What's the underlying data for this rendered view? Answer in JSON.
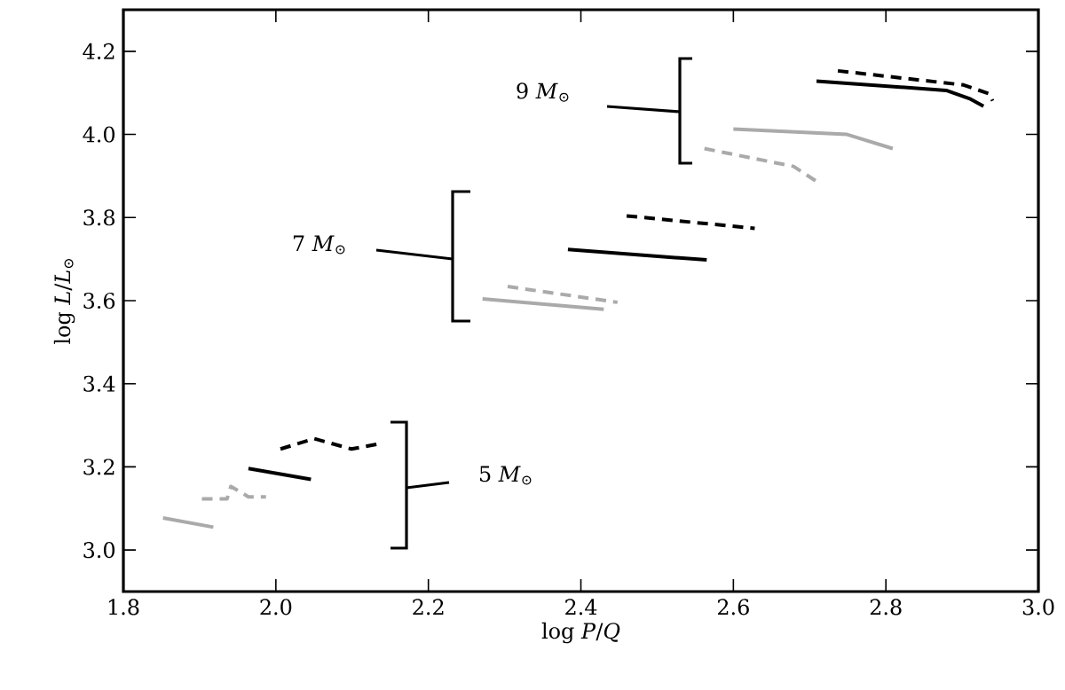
{
  "chart_data": {
    "type": "line",
    "xlabel": "log *P*/*Q*",
    "ylabel": "log *L*/*L*$_{⊙}$",
    "xlim": [
      1.8,
      3.0
    ],
    "ylim": [
      2.9,
      4.3
    ],
    "xticks": [
      1.8,
      {
        "value": 2.0,
        "label": "2.0"
      },
      2.2,
      2.4,
      2.6,
      2.8,
      {
        "value": 3.0,
        "label": "3.0"
      }
    ],
    "yticks": [
      {
        "value": 3.0,
        "label": "3.0"
      },
      3.2,
      3.4,
      3.6,
      3.8,
      {
        "value": 4.0,
        "label": "4.0"
      },
      4.2
    ],
    "annotations": [
      "9 *M*$_{⊙}$",
      "7 *M*$_{⊙}$",
      "5 *M*$_{⊙}$"
    ],
    "series": [
      {
        "color": "#000000",
        "line_style": "solid",
        "x": [
          2.709,
          2.879,
          2.911,
          2.928
        ],
        "values": [
          4.128,
          4.106,
          4.085,
          4.068
        ]
      },
      {
        "color": "#000000",
        "line_style": "dashed",
        "x": [
          2.737,
          2.902,
          2.935,
          2.94
        ],
        "values": [
          4.153,
          4.119,
          4.098,
          4.081
        ]
      },
      {
        "color": "#aaaaaa",
        "line_style": "solid",
        "x": [
          2.6,
          2.749,
          2.809
        ],
        "values": [
          4.013,
          4.0,
          3.966
        ]
      },
      {
        "color": "#aaaaaa",
        "line_style": "dashed",
        "x": [
          2.562,
          2.679,
          2.714
        ],
        "values": [
          3.966,
          3.923,
          3.881
        ]
      },
      {
        "color": "#000000",
        "line_style": "solid",
        "x": [
          2.383,
          2.565
        ],
        "values": [
          3.723,
          3.698
        ]
      },
      {
        "color": "#000000",
        "line_style": "dashed",
        "x": [
          2.46,
          2.628
        ],
        "values": [
          3.804,
          3.774
        ]
      },
      {
        "color": "#aaaaaa",
        "line_style": "solid",
        "x": [
          2.271,
          2.43
        ],
        "values": [
          3.604,
          3.579
        ]
      },
      {
        "color": "#aaaaaa",
        "line_style": "dashed",
        "x": [
          2.304,
          2.448
        ],
        "values": [
          3.634,
          3.596
        ]
      },
      {
        "color": "#000000",
        "line_style": "solid",
        "x": [
          1.964,
          2.046
        ],
        "values": [
          3.196,
          3.17
        ]
      },
      {
        "color": "#000000",
        "line_style": "dashed",
        "x": [
          2.006,
          2.05,
          2.099,
          2.134
        ],
        "values": [
          3.243,
          3.268,
          3.243,
          3.255
        ]
      },
      {
        "color": "#aaaaaa",
        "line_style": "solid",
        "x": [
          1.852,
          1.918
        ],
        "values": [
          3.077,
          3.055
        ]
      },
      {
        "color": "#aaaaaa",
        "line_style": "dashed",
        "x": [
          1.903,
          1.936,
          1.941,
          1.964,
          1.987
        ],
        "values": [
          3.123,
          3.123,
          3.153,
          3.128,
          3.128
        ]
      }
    ]
  }
}
